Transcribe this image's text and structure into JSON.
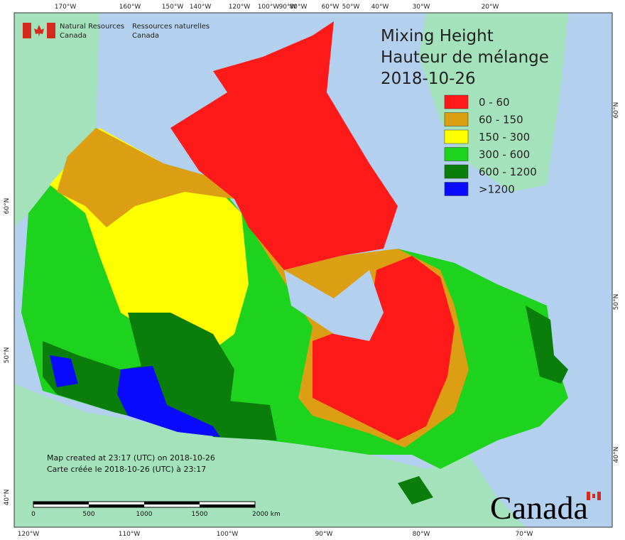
{
  "header": {
    "agency_en": [
      "Natural Resources",
      "Canada"
    ],
    "agency_fr": [
      "Ressources naturelles",
      "Canada"
    ]
  },
  "title": [
    "Mixing Height",
    "Hauteur de mélange",
    "2018-10-26"
  ],
  "legend": {
    "items": [
      {
        "label": "0 - 60",
        "color": "#ff1a1a"
      },
      {
        "label": "60 - 150",
        "color": "#dc9e12"
      },
      {
        "label": "150 - 300",
        "color": "#ffff00"
      },
      {
        "label": "300 - 600",
        "color": "#1ed31e"
      },
      {
        "label": "600 - 1200",
        "color": "#0a7d0a"
      },
      {
        "label": ">1200",
        "color": "#0a0aff"
      }
    ]
  },
  "axes": {
    "top": [
      "170°W",
      "160°W",
      "150°W",
      "140°W",
      "120°W",
      "100°W",
      "90°W",
      "80°W",
      "60°W",
      "50°W",
      "40°W",
      "30°W",
      "20°W"
    ],
    "bottom": [
      "120°W",
      "110°W",
      "100°W",
      "90°W",
      "80°W",
      "70°W"
    ],
    "left": [
      "60°N",
      "50°N",
      "40°N"
    ],
    "right": [
      "60°N",
      "50°N",
      "40°N"
    ]
  },
  "notes": [
    "Map created at 23:17 (UTC) on 2018-10-26",
    "Carte créée le 2018-10-26 (UTC) à 23:17"
  ],
  "scale_bar": [
    "0",
    "500",
    "1000",
    "1500",
    "2000 km"
  ],
  "wordmark": "Canada"
}
